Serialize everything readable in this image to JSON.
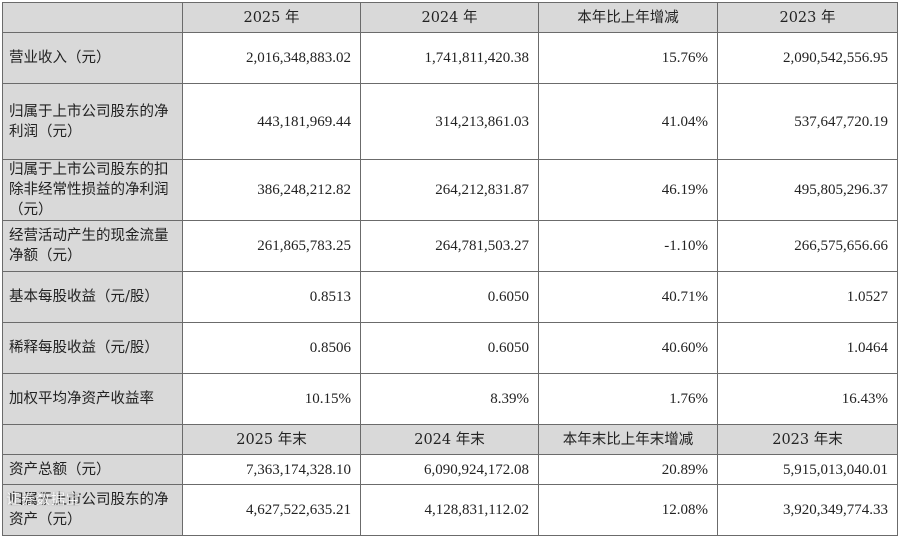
{
  "header1": [
    "",
    "2025 年",
    "2024 年",
    "本年比上年增减",
    "2023 年"
  ],
  "rows1": [
    {
      "label": "营业收入（元）",
      "values": [
        "2,016,348,883.02",
        "1,741,811,420.38",
        "15.76%",
        "2,090,542,556.95"
      ]
    },
    {
      "label": "归属于上市公司股东的净利润（元）",
      "values": [
        "443,181,969.44",
        "314,213,861.03",
        "41.04%",
        "537,647,720.19"
      ]
    },
    {
      "label": "归属于上市公司股东的扣除非经常性损益的净利润（元）",
      "values": [
        "386,248,212.82",
        "264,212,831.87",
        "46.19%",
        "495,805,296.37"
      ]
    },
    {
      "label": "经营活动产生的现金流量净额（元）",
      "values": [
        "261,865,783.25",
        "264,781,503.27",
        "-1.10%",
        "266,575,656.66"
      ]
    },
    {
      "label": "基本每股收益（元/股）",
      "values": [
        "0.8513",
        "0.6050",
        "40.71%",
        "1.0527"
      ]
    },
    {
      "label": "稀释每股收益（元/股）",
      "values": [
        "0.8506",
        "0.6050",
        "40.60%",
        "1.0464"
      ]
    },
    {
      "label": "加权平均净资产收益率",
      "values": [
        "10.15%",
        "8.39%",
        "1.76%",
        "16.43%"
      ]
    }
  ],
  "header2": [
    "",
    "2025 年末",
    "2024 年末",
    "本年末比上年末增减",
    "2023 年末"
  ],
  "rows2": [
    {
      "label": "资产总额（元）",
      "values": [
        "7,363,174,328.10",
        "6,090,924,172.08",
        "20.89%",
        "5,915,013,040.01"
      ]
    },
    {
      "label": "归属于上市公司股东的净资产（元）",
      "values": [
        "4,627,522,635.21",
        "4,128,831,112.02",
        "12.08%",
        "3,920,349,774.33"
      ]
    }
  ],
  "watermark": "证券数据宝"
}
